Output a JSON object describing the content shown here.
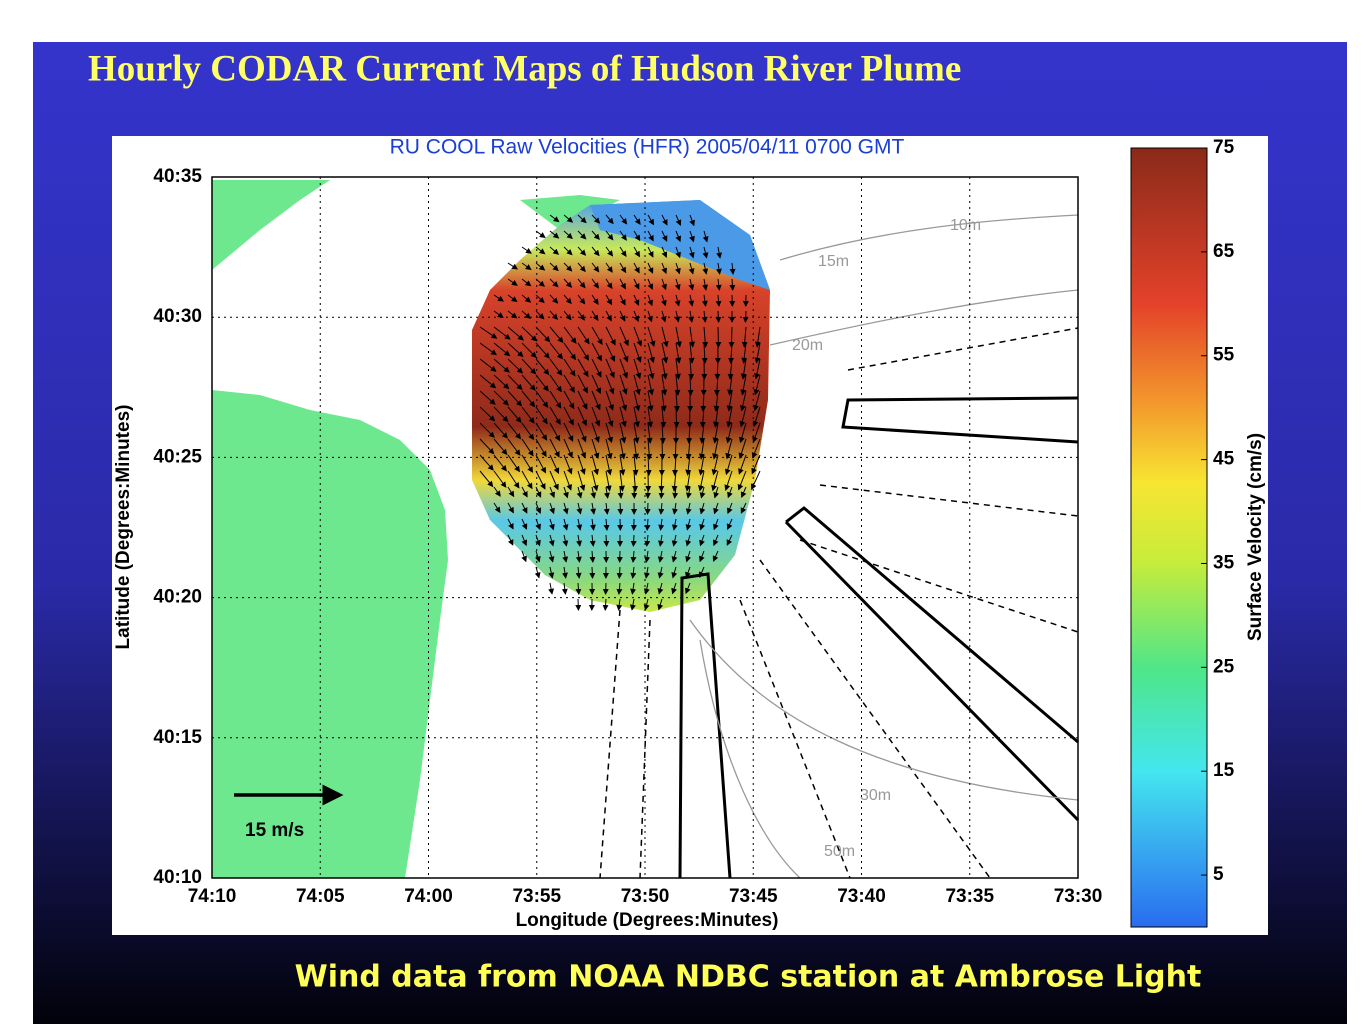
{
  "slide": {
    "title": "Hourly CODAR Current Maps of Hudson River Plume",
    "caption": "Wind data from NOAA NDBC station at Ambrose Light"
  },
  "map": {
    "title": "RU COOL Raw Velocities (HFR) 2005/04/11 0700 GMT",
    "xlabel": "Longitude (Degrees:Minutes)",
    "ylabel": "Latitude (Degrees:Minutes)",
    "xticks": [
      "74:10",
      "74:05",
      "74:00",
      "73:55",
      "73:50",
      "73:45",
      "73:40",
      "73:35",
      "73:30"
    ],
    "yticks": [
      "40:35",
      "40:30",
      "40:25",
      "40:20",
      "40:15",
      "40:10"
    ],
    "contour_labels": [
      "10m",
      "15m",
      "20m",
      "30m",
      "50m"
    ],
    "scale_label": "15 m/s",
    "colorbar": {
      "label": "Surface Velocity (cm/s)",
      "lim": [
        0,
        75
      ],
      "ticks": [
        5,
        15,
        25,
        35,
        45,
        55,
        65,
        75
      ]
    }
  }
}
